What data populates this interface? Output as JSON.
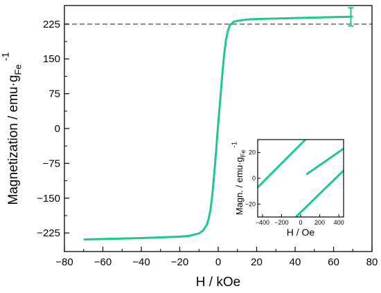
{
  "chart_data": [
    {
      "type": "line",
      "xlabel": "H / kOe",
      "ylabel_main": "Magnetization / emu·g",
      "ylabel_sub": "Fe",
      "ylabel_sup": "-1",
      "xlim": [
        -80,
        80
      ],
      "ylim": [
        -265,
        265
      ],
      "x_ticks": [
        -80,
        -60,
        -40,
        -20,
        0,
        20,
        40,
        60,
        80
      ],
      "y_ticks": [
        -225,
        -150,
        -75,
        0,
        75,
        150,
        225
      ],
      "grid": false,
      "reference_line": {
        "y": 225,
        "style": "dashed"
      },
      "error_bar": {
        "x": 69,
        "y_low": 221,
        "y_high": 260
      },
      "series": [
        {
          "color": "#1bc98e",
          "x": [
            -70,
            -60,
            -40,
            -20,
            -15,
            -10,
            -8,
            -6,
            -5,
            -4,
            -3,
            -2,
            -1.5,
            -1,
            -0.5,
            0,
            0.5,
            1,
            1.5,
            2,
            3,
            4,
            5,
            6,
            8,
            10,
            15,
            20,
            40,
            60,
            70
          ],
          "y": [
            -239,
            -238,
            -236,
            -233,
            -231,
            -226,
            -220,
            -208,
            -195,
            -175,
            -140,
            -95,
            -70,
            -45,
            -15,
            10,
            35,
            60,
            85,
            110,
            155,
            190,
            210,
            222,
            230,
            232,
            235,
            236,
            238,
            240,
            241
          ]
        }
      ]
    },
    {
      "type": "line",
      "xlabel": "H / Oe",
      "ylabel_main": "Magn. / emu·g",
      "ylabel_sub": "Fe",
      "ylabel_sup": "-1",
      "xlim": [
        -450,
        450
      ],
      "ylim": [
        -30,
        30
      ],
      "x_ticks": [
        -400,
        -200,
        0,
        200,
        400
      ],
      "y_ticks": [
        -20,
        0,
        20
      ],
      "grid": false,
      "series": [
        {
          "color": "#1bc98e",
          "x": [
            -450,
            50
          ],
          "y": [
            -7,
            30
          ]
        },
        {
          "color": "#1bc98e",
          "x": [
            60,
            450
          ],
          "y": [
            3,
            23
          ]
        },
        {
          "color": "#1bc98e",
          "x": [
            -50,
            450
          ],
          "y": [
            -30,
            6
          ]
        }
      ]
    }
  ]
}
